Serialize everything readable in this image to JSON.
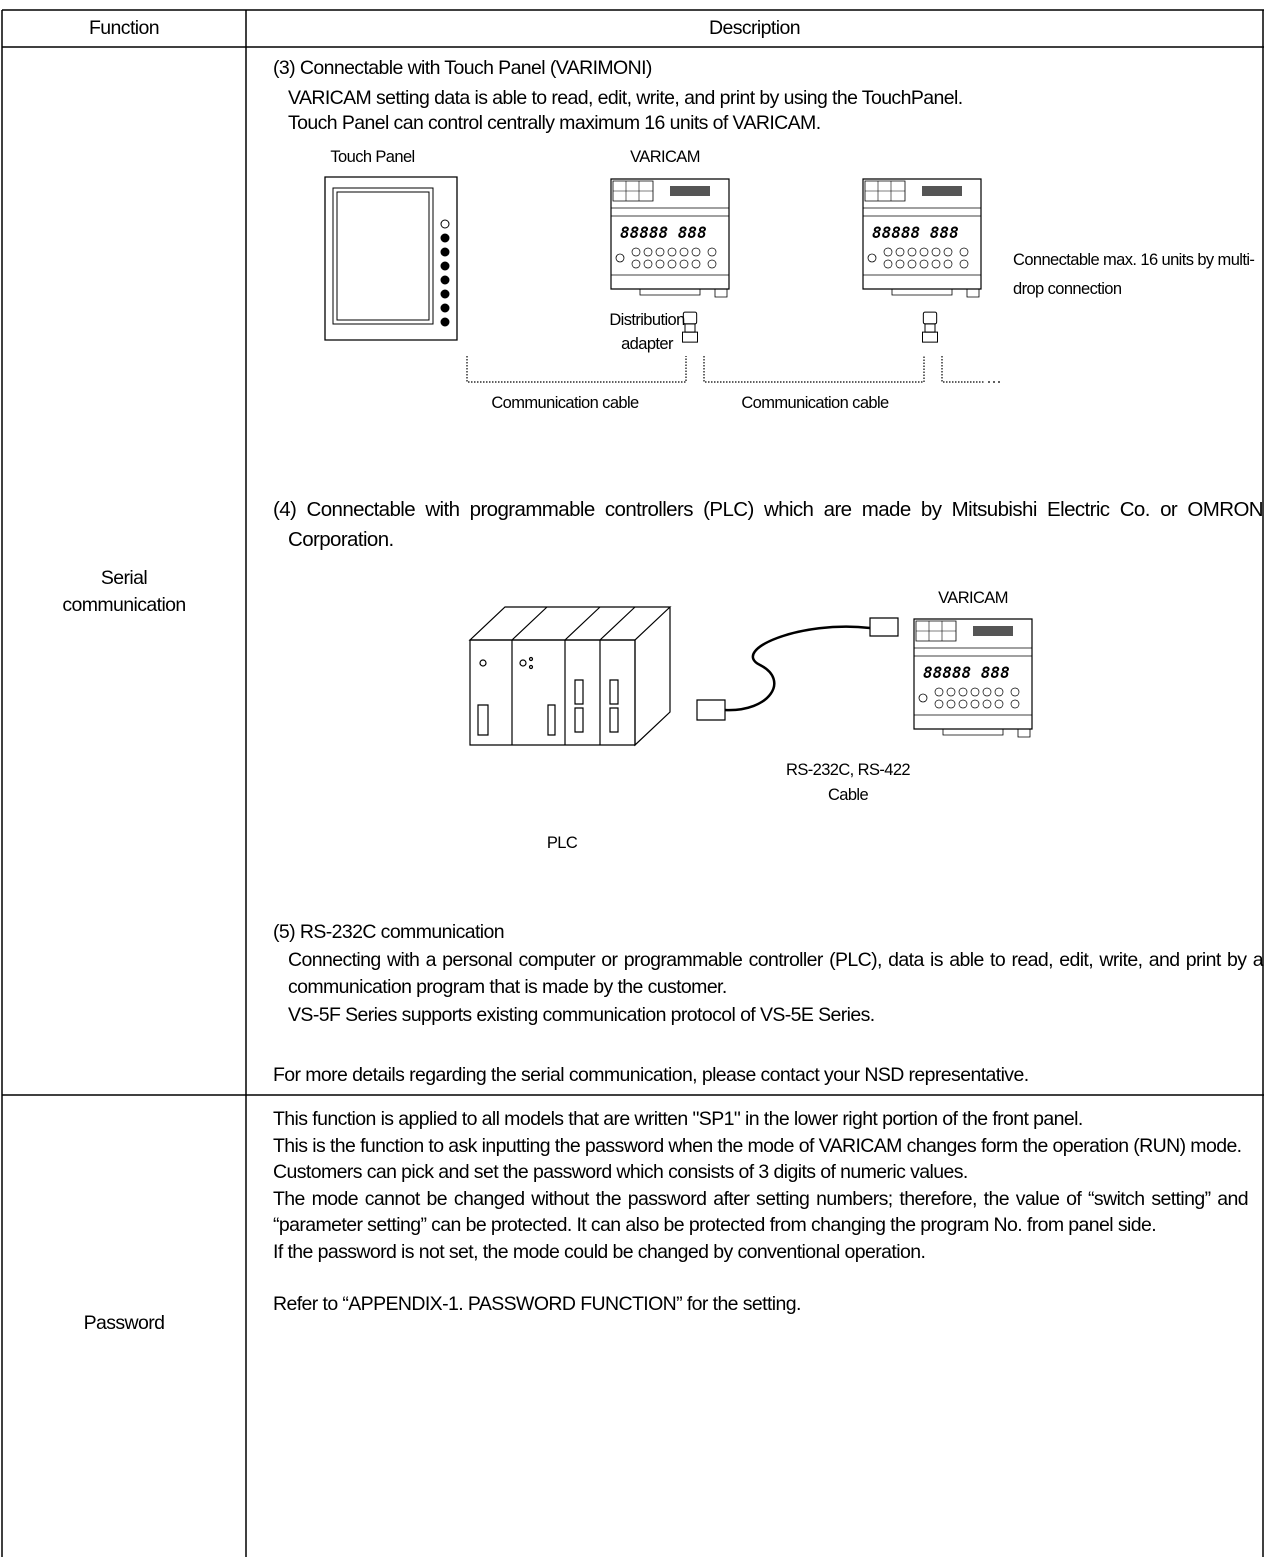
{
  "table": {
    "header": [
      "Function",
      "Description"
    ],
    "rows": [
      {
        "function": "Serial communication",
        "sections": [
          {
            "heading": "(3) Connectable with Touch Panel (VARIMONI)",
            "lines": [
              "VARICAM setting data is able to read, edit, write, and print by using the TouchPanel.",
              "Touch Panel can control centrally maximum 16 units of VARICAM."
            ],
            "figure": {
              "touch_panel": "Touch Panel",
              "varicam": "VARICAM",
              "adapter": "Distribution adapter",
              "multidrop": "Connectable max. 16 units by multi-drop connection",
              "cables": [
                "Communication cable",
                "Communication cable"
              ]
            }
          },
          {
            "heading": "(4) Connectable with programmable controllers (PLC) which are made by Mitsubishi Electric Co. or OMRON Corporation.",
            "figure": {
              "varicam": "VARICAM",
              "cable": "RS-232C, RS-422",
              "cable_type": "Cable",
              "plc": "PLC"
            }
          },
          {
            "heading": "(5) RS-232C communication",
            "lines": [
              "Connecting with a personal computer or programmable controller (PLC), data is able to read, edit, write, and print by a communication program that is made by the customer.",
              "VS-5F Series supports existing communication protocol of VS-5E Series."
            ]
          }
        ],
        "note": "For more details regarding the serial communication, please contact your NSD representative."
      },
      {
        "function": "Password",
        "paragraphs": [
          "This function is applied to all models that are written \"SP1\" in the lower right portion of the front panel.",
          "This is the function to ask inputting the password when the mode of VARICAM changes form the operation (RUN) mode.",
          "Customers can pick and set the password which consists of 3 digits of numeric values.",
          "The mode cannot be changed without the password after setting numbers; therefore, the value of “switch setting” and “parameter setting” can be protected.  It can also be protected from changing the program No. from panel side.",
          "If the password is not set, the mode could be changed by conventional operation.",
          "Refer to “APPENDIX-1. PASSWORD FUNCTION” for the setting."
        ]
      }
    ]
  }
}
